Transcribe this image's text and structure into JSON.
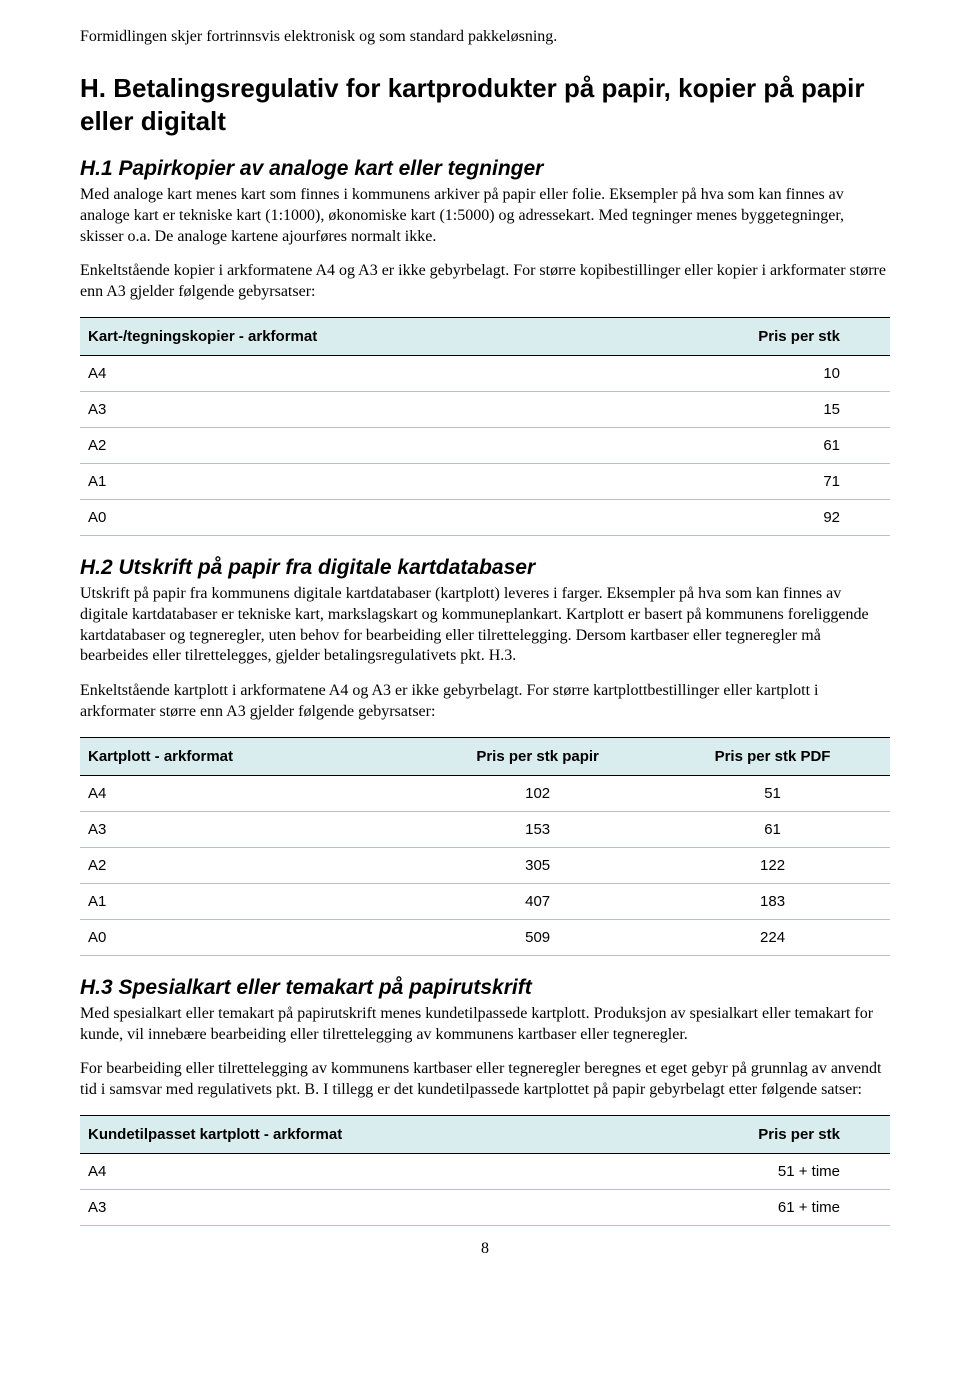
{
  "colors": {
    "header_bg": "#d9ecee",
    "row_border": "#a9c9c5",
    "text": "#000000",
    "page_bg": "#ffffff"
  },
  "typography": {
    "body_font": "Times New Roman",
    "heading_font": "Arial",
    "body_size_pt": 12,
    "h1_size_pt": 20,
    "h2_size_pt": 16
  },
  "intro": "Formidlingen skjer fortrinnsvis elektronisk og som standard pakkeløsning.",
  "section_h": {
    "title": " H. Betalingsregulativ for kartprodukter på papir, kopier på papir eller digitalt",
    "h1": {
      "title": "H.1 Papirkopier av analoge kart eller tegninger",
      "para1": "Med analoge kart menes kart som finnes i kommunens arkiver på papir eller folie. Eksempler på hva som kan finnes av analoge kart er tekniske kart (1:1000), økonomiske kart (1:5000) og adressekart. Med tegninger menes byggetegninger, skisser o.a. De analoge kartene ajourføres normalt ikke.",
      "para2": "Enkeltstående kopier i arkformatene A4 og A3 er ikke gebyrbelagt. For større kopibestillinger eller kopier i arkformater større enn A3 gjelder følgende gebyrsatser:",
      "table": {
        "type": "table",
        "columns": [
          "Kart-/tegningskopier - arkformat",
          "Pris per stk"
        ],
        "col_align": [
          "left",
          "right"
        ],
        "rows": [
          [
            "A4",
            "10"
          ],
          [
            "A3",
            "15"
          ],
          [
            "A2",
            "61"
          ],
          [
            "A1",
            "71"
          ],
          [
            "A0",
            "92"
          ]
        ]
      }
    },
    "h2": {
      "title": "H.2 Utskrift på papir fra digitale kartdatabaser",
      "para1": "Utskrift på papir fra kommunens digitale kartdatabaser (kartplott) leveres i farger. Eksempler på hva som kan finnes av digitale kartdatabaser er tekniske kart, markslagskart og kommuneplankart. Kartplott er basert på kommunens foreliggende kartdatabaser og tegneregler, uten behov for bearbeiding eller tilrettelegging. Dersom kartbaser eller tegneregler må bearbeides eller tilrettelegges, gjelder betalingsregulativets pkt. H.3.",
      "para2": "Enkeltstående kartplott i arkformatene A4 og A3 er ikke gebyrbelagt. For større kartplottbestillinger eller kartplott i arkformater større enn A3 gjelder følgende gebyrsatser:",
      "table": {
        "type": "table",
        "columns": [
          "Kartplott - arkformat",
          "Pris per stk papir",
          "Pris per stk PDF"
        ],
        "col_align": [
          "left",
          "center",
          "center"
        ],
        "col_widths_pct": [
          42,
          29,
          29
        ],
        "rows": [
          [
            "A4",
            "102",
            "51"
          ],
          [
            "A3",
            "153",
            "61"
          ],
          [
            "A2",
            "305",
            "122"
          ],
          [
            "A1",
            "407",
            "183"
          ],
          [
            "A0",
            "509",
            "224"
          ]
        ]
      }
    },
    "h3": {
      "title": "H.3 Spesialkart eller temakart på papirutskrift",
      "para1": "Med spesialkart eller temakart på papirutskrift menes kundetilpassede kartplott. Produksjon av spesialkart eller temakart for kunde, vil innebære bearbeiding eller tilrettelegging av kommunens kartbaser eller tegneregler.",
      "para2": "For bearbeiding eller tilrettelegging av kommunens kartbaser eller tegneregler beregnes et eget gebyr på grunnlag av anvendt tid i samsvar med regulativets pkt. B. I tillegg er det kundetilpassede kartplottet på papir gebyrbelagt etter følgende satser:",
      "table": {
        "type": "table",
        "columns": [
          "Kundetilpasset kartplott - arkformat",
          "Pris per stk"
        ],
        "col_align": [
          "left",
          "right"
        ],
        "rows": [
          [
            "A4",
            "51 + time"
          ],
          [
            "A3",
            "61 + time"
          ]
        ]
      }
    }
  },
  "page_number": "8"
}
